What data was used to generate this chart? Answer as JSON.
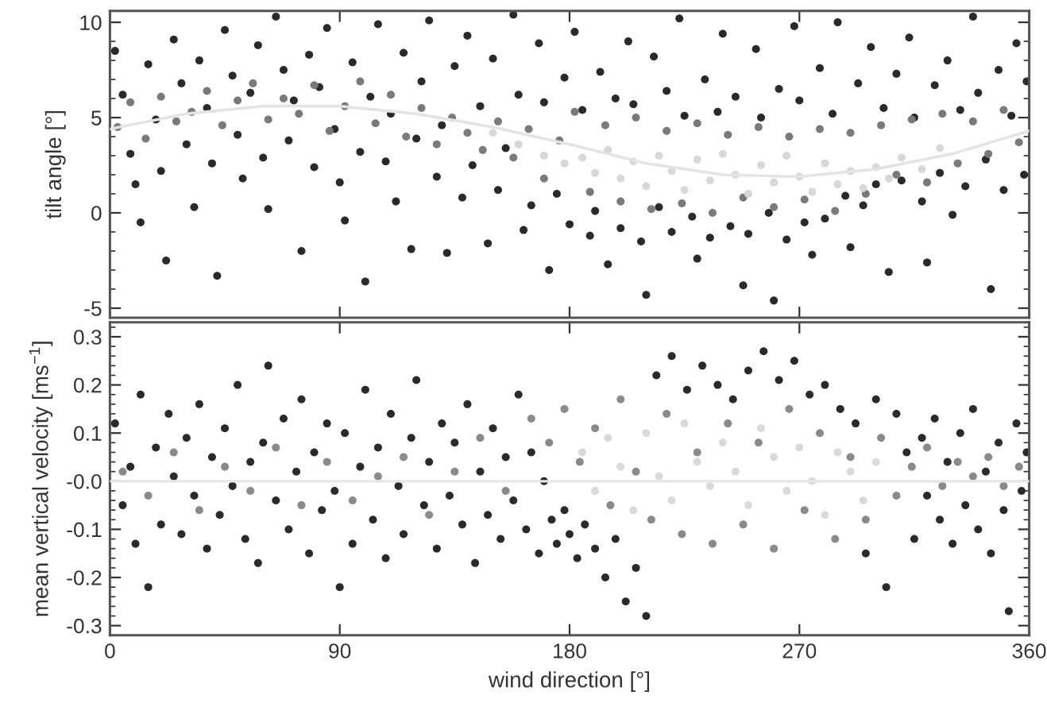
{
  "chart_data": [
    {
      "type": "scatter",
      "ylabel": "tilt angle [°]",
      "xlim": [
        0,
        360
      ],
      "xticks": [
        0,
        90,
        180,
        270,
        360
      ],
      "ylim": [
        -5.5,
        10.6
      ],
      "yticks": [
        -5,
        0,
        5,
        10
      ],
      "tick_labels": "y",
      "marker": "circle",
      "series": [
        {
          "color": "#2a2a2a",
          "x": [
            2,
            5,
            8,
            10,
            12,
            15,
            18,
            20,
            22,
            25,
            28,
            30,
            33,
            35,
            38,
            40,
            42,
            45,
            48,
            50,
            52,
            55,
            58,
            60,
            62,
            65,
            68,
            70,
            72,
            75,
            78,
            80,
            82,
            85,
            88,
            90,
            92,
            95,
            98,
            100,
            102,
            105,
            108,
            110,
            112,
            115,
            118,
            120,
            122,
            125,
            128,
            130,
            132,
            135,
            138,
            140,
            142,
            145,
            148,
            150,
            152,
            155,
            158,
            160,
            162,
            165,
            168,
            170,
            172,
            175,
            178,
            180,
            182,
            185,
            188,
            190,
            192,
            195,
            198,
            200,
            203,
            205,
            208,
            210,
            213,
            215,
            218,
            220,
            223,
            225,
            228,
            230,
            233,
            235,
            238,
            240,
            243,
            245,
            248,
            250,
            253,
            255,
            258,
            260,
            262,
            265,
            268,
            270,
            272,
            275,
            278,
            280,
            283,
            285,
            288,
            290,
            293,
            295,
            298,
            300,
            303,
            305,
            308,
            310,
            313,
            315,
            318,
            320,
            323,
            325,
            328,
            330,
            333,
            335,
            338,
            340,
            343,
            345,
            348,
            350,
            353,
            355,
            358,
            359
          ],
          "values": [
            8.5,
            6.2,
            3.1,
            1.5,
            -0.5,
            7.8,
            4.9,
            2.2,
            -2.5,
            9.1,
            6.8,
            3.6,
            0.3,
            8.0,
            5.5,
            2.6,
            -3.3,
            9.6,
            7.2,
            4.1,
            1.8,
            6.3,
            8.8,
            2.9,
            0.2,
            10.3,
            7.5,
            3.8,
            5.9,
            -2.0,
            8.3,
            2.4,
            6.6,
            9.7,
            4.4,
            1.6,
            -0.4,
            7.9,
            3.2,
            -3.6,
            6.1,
            9.9,
            2.7,
            5.2,
            0.6,
            8.4,
            -1.9,
            3.9,
            6.9,
            10.1,
            1.9,
            4.6,
            -2.1,
            7.7,
            0.8,
            9.3,
            2.5,
            5.6,
            -1.6,
            8.1,
            1.2,
            3.4,
            10.4,
            6.2,
            -0.9,
            0.4,
            8.9,
            5.8,
            -3.0,
            1.0,
            7.1,
            -0.6,
            9.5,
            5.4,
            -1.2,
            0.1,
            7.4,
            -2.7,
            6.0,
            -0.8,
            9.0,
            5.7,
            -1.5,
            -4.3,
            8.2,
            0.3,
            6.4,
            -1.0,
            10.2,
            5.1,
            -0.2,
            -2.4,
            7.0,
            -1.3,
            5.3,
            9.4,
            -0.7,
            6.1,
            -3.8,
            -1.1,
            8.6,
            5.0,
            0.0,
            -4.6,
            6.5,
            -1.4,
            9.8,
            5.9,
            -0.5,
            -2.2,
            7.6,
            -0.3,
            5.2,
            10.0,
            0.9,
            -1.8,
            6.8,
            0.4,
            8.7,
            1.5,
            5.5,
            -3.1,
            7.3,
            1.7,
            9.2,
            5.0,
            0.6,
            -2.6,
            6.7,
            2.1,
            8.0,
            -0.1,
            5.4,
            1.4,
            10.3,
            6.3,
            2.8,
            -4.0,
            7.5,
            1.2,
            5.1,
            8.9,
            2.0,
            6.9
          ]
        },
        {
          "color": "#7a7a7a",
          "x": [
            3,
            8,
            14,
            20,
            26,
            32,
            38,
            44,
            50,
            56,
            62,
            68,
            74,
            80,
            86,
            92,
            98,
            104,
            110,
            116,
            122,
            128,
            134,
            140,
            146,
            152,
            158,
            164,
            170,
            176,
            182,
            188,
            194,
            200,
            206,
            212,
            218,
            224,
            230,
            236,
            242,
            248,
            254,
            260,
            266,
            272,
            278,
            284,
            290,
            296,
            302,
            308,
            314,
            320,
            326,
            332,
            338,
            344,
            350,
            356
          ],
          "values": [
            4.5,
            5.8,
            3.9,
            6.1,
            4.8,
            5.3,
            6.4,
            4.6,
            5.9,
            6.8,
            4.9,
            6.0,
            5.2,
            6.7,
            4.3,
            5.6,
            6.9,
            4.7,
            6.2,
            4.0,
            5.5,
            3.6,
            5.0,
            4.2,
            3.3,
            4.8,
            2.9,
            4.4,
            1.8,
            3.8,
            5.3,
            1.1,
            4.6,
            0.6,
            5.0,
            0.2,
            4.3,
            0.5,
            4.7,
            0.0,
            4.1,
            0.8,
            4.5,
            0.3,
            4.0,
            0.7,
            4.4,
            0.1,
            4.2,
            1.0,
            4.6,
            2.0,
            4.9,
            1.6,
            5.2,
            2.6,
            4.8,
            3.1,
            5.4,
            3.7
          ]
        },
        {
          "color": "#d8d8d8",
          "x": [
            150,
            160,
            170,
            178,
            185,
            190,
            195,
            200,
            205,
            210,
            215,
            220,
            225,
            230,
            235,
            240,
            245,
            250,
            255,
            260,
            265,
            270,
            275,
            280,
            285,
            290,
            295,
            300,
            305,
            310,
            318,
            325
          ],
          "values": [
            4.2,
            3.6,
            3.0,
            2.6,
            2.9,
            2.1,
            3.3,
            1.8,
            2.7,
            1.4,
            3.0,
            2.2,
            1.2,
            2.8,
            1.7,
            3.1,
            2.0,
            1.0,
            2.5,
            1.6,
            3.0,
            1.9,
            1.1,
            2.6,
            1.5,
            2.2,
            1.3,
            2.4,
            1.8,
            2.9,
            2.3,
            3.4
          ]
        },
        {
          "type": "line",
          "color": "#e4e4e4",
          "marker": "none",
          "line_style": "solid",
          "x": [
            0,
            30,
            60,
            90,
            120,
            150,
            180,
            210,
            240,
            270,
            300,
            330,
            360
          ],
          "values": [
            4.4,
            5.2,
            5.6,
            5.6,
            5.2,
            4.5,
            3.6,
            2.6,
            2.0,
            1.9,
            2.3,
            3.1,
            4.3
          ]
        }
      ]
    },
    {
      "type": "scatter",
      "xlabel": "wind direction [°]",
      "ylabel": "mean vertical velocity [ms$^{−1}$]",
      "xlim": [
        0,
        360
      ],
      "xticks": [
        0,
        90,
        180,
        270,
        360
      ],
      "ylim": [
        -0.32,
        0.33
      ],
      "yticks": [
        -0.3,
        -0.2,
        -0.1,
        {
          "value": 0,
          "label": "-0.0"
        },
        0.1,
        0.2,
        0.3
      ],
      "marker": "circle",
      "ref_lines": [
        {
          "axis": "y",
          "value": 0,
          "color": "#e6e6e6"
        }
      ],
      "series": [
        {
          "color": "#2a2a2a",
          "x": [
            2,
            5,
            8,
            10,
            12,
            15,
            18,
            20,
            23,
            25,
            28,
            30,
            33,
            35,
            38,
            40,
            43,
            45,
            48,
            50,
            53,
            55,
            58,
            60,
            62,
            65,
            68,
            70,
            73,
            75,
            78,
            80,
            83,
            85,
            88,
            90,
            92,
            95,
            98,
            100,
            103,
            105,
            108,
            110,
            113,
            115,
            118,
            120,
            123,
            125,
            128,
            130,
            133,
            135,
            138,
            140,
            143,
            145,
            148,
            150,
            153,
            155,
            158,
            160,
            163,
            165,
            168,
            170,
            173,
            175,
            178,
            180,
            183,
            186,
            190,
            194,
            198,
            202,
            206,
            210,
            214,
            220,
            226,
            232,
            238,
            244,
            250,
            256,
            262,
            268,
            274,
            280,
            286,
            292,
            296,
            300,
            304,
            308,
            312,
            315,
            318,
            320,
            323,
            325,
            328,
            330,
            333,
            335,
            338,
            340,
            343,
            345,
            348,
            350,
            352,
            355,
            357,
            359
          ],
          "values": [
            0.12,
            -0.05,
            0.03,
            -0.13,
            0.18,
            -0.22,
            0.07,
            -0.09,
            0.14,
            0.01,
            -0.11,
            0.09,
            -0.03,
            0.16,
            -0.14,
            0.05,
            -0.07,
            0.11,
            -0.01,
            0.2,
            -0.12,
            0.04,
            -0.17,
            0.08,
            0.24,
            -0.04,
            0.13,
            -0.1,
            0.02,
            0.17,
            -0.15,
            0.06,
            -0.06,
            0.12,
            -0.02,
            -0.22,
            0.1,
            -0.13,
            0.03,
            0.19,
            -0.08,
            0.07,
            -0.16,
            0.14,
            -0.01,
            -0.11,
            0.09,
            0.21,
            -0.05,
            0.04,
            -0.14,
            0.12,
            -0.03,
            0.08,
            -0.09,
            0.16,
            -0.17,
            0.02,
            -0.07,
            0.11,
            -0.12,
            0.05,
            -0.04,
            0.18,
            -0.1,
            0.06,
            -0.15,
            0.0,
            -0.08,
            -0.13,
            -0.06,
            -0.11,
            -0.16,
            -0.09,
            -0.14,
            -0.2,
            -0.12,
            -0.25,
            -0.18,
            -0.28,
            0.22,
            0.26,
            0.19,
            0.24,
            0.2,
            0.17,
            0.23,
            0.27,
            0.21,
            0.25,
            0.18,
            0.2,
            0.15,
            0.12,
            -0.15,
            0.17,
            -0.22,
            0.14,
            0.06,
            -0.12,
            0.09,
            -0.03,
            0.13,
            -0.08,
            0.04,
            -0.13,
            0.1,
            -0.05,
            0.15,
            -0.1,
            0.02,
            -0.15,
            0.08,
            -0.06,
            -0.27,
            0.12,
            -0.02,
            0.06
          ]
        },
        {
          "color": "#8a8a8a",
          "x": [
            5,
            15,
            25,
            35,
            45,
            55,
            65,
            75,
            85,
            95,
            105,
            115,
            125,
            135,
            145,
            155,
            165,
            172,
            178,
            184,
            190,
            196,
            200,
            206,
            212,
            218,
            224,
            230,
            236,
            242,
            248,
            254,
            260,
            266,
            272,
            278,
            284,
            290,
            296,
            302,
            308,
            314,
            320,
            326,
            332,
            338,
            344,
            350,
            356
          ],
          "values": [
            0.02,
            -0.03,
            0.06,
            -0.06,
            0.03,
            -0.02,
            0.07,
            -0.05,
            0.04,
            -0.04,
            0.01,
            0.05,
            -0.07,
            0.02,
            0.09,
            -0.02,
            0.13,
            0.08,
            0.15,
            0.04,
            0.11,
            -0.05,
            0.17,
            0.02,
            -0.08,
            0.14,
            -0.11,
            0.06,
            -0.13,
            0.12,
            -0.09,
            0.08,
            -0.14,
            0.15,
            -0.06,
            0.1,
            -0.12,
            0.05,
            -0.08,
            0.09,
            -0.03,
            0.03,
            0.07,
            -0.01,
            0.04,
            0.01,
            0.05,
            -0.01,
            0.03
          ]
        },
        {
          "color": "#dadada",
          "x": [
            185,
            190,
            195,
            200,
            205,
            210,
            215,
            220,
            225,
            230,
            235,
            240,
            245,
            250,
            255,
            260,
            265,
            270,
            275,
            280,
            285,
            290,
            295,
            300
          ],
          "values": [
            0.06,
            -0.02,
            0.09,
            0.03,
            -0.06,
            0.1,
            0.01,
            -0.04,
            0.12,
            0.04,
            -0.01,
            0.08,
            0.02,
            -0.05,
            0.11,
            0.05,
            -0.02,
            0.07,
            0.0,
            -0.07,
            0.06,
            0.02,
            -0.04,
            0.04
          ]
        }
      ]
    }
  ]
}
